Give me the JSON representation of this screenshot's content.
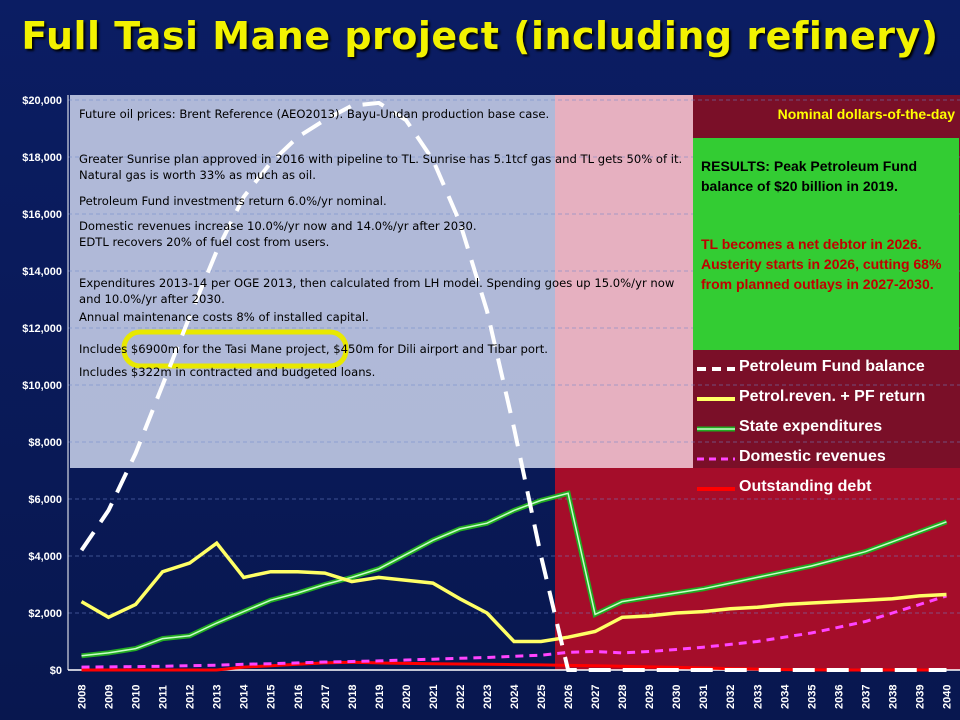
{
  "title": "Full Tasi Mane project (including refinery)",
  "nominal_label": "Nominal dollars-of-the-day",
  "results_text": "RESULTS: Peak Petroleum Fund balance of $20 billion in 2019.",
  "debtor_text": "TL becomes a net debtor in 2026.  Austerity starts in 2026, cutting 68% from planned outlays in 2027-2030.",
  "annotations": [
    "Future oil prices: Brent Reference (AEO2013).   Bayu-Undan production base case.",
    "Greater Sunrise plan approved in 2016 with pipeline to TL. Sunrise has 5.1tcf gas and TL gets 50% of it.",
    "Natural gas is worth 33% as much as oil.",
    "Petroleum Fund investments return 6.0%/yr nominal.",
    "Domestic revenues increase 10.0%/yr now and 14.0%/yr after 2030.",
    "EDTL recovers 20% of fuel cost from users.",
    "Expenditures 2013-14 per OGE 2013, then calculated from LH model. Spending goes up 15.0%/yr now",
    "and 10.0%/yr after 2030.",
    "Annual maintenance costs 8% of installed capital.",
    "Includes $6900m for the Tasi Mane project, $450m for Dili airport and Tibar port.",
    "Includes $322m in contracted and budgeted loans."
  ],
  "colors": {
    "pf": "#ffffff",
    "rev": "#ffff66",
    "exp": "#22aa22",
    "dom": "#ff44ff",
    "debt": "#ff0000",
    "highlight": "#e8e800"
  },
  "chart_data": {
    "type": "line",
    "x": [
      2008,
      2009,
      2010,
      2011,
      2012,
      2013,
      2014,
      2015,
      2016,
      2017,
      2018,
      2019,
      2020,
      2021,
      2022,
      2023,
      2024,
      2025,
      2026,
      2027,
      2028,
      2029,
      2030,
      2031,
      2032,
      2033,
      2034,
      2035,
      2036,
      2037,
      2038,
      2039,
      2040
    ],
    "yticks": [
      "$0",
      "$2,000",
      "$4,000",
      "$6,000",
      "$8,000",
      "$10,000",
      "$12,000",
      "$14,000",
      "$16,000",
      "$18,000",
      "$20,000"
    ],
    "ylim": [
      0,
      20000
    ],
    "series": [
      {
        "name": "Petroleum Fund balance",
        "key": "pf",
        "style": "dashed",
        "values": [
          4200,
          5600,
          7600,
          10000,
          12400,
          14700,
          16600,
          17800,
          18700,
          19300,
          19800,
          19900,
          19300,
          17900,
          15700,
          12600,
          8500,
          4000,
          0,
          0,
          0,
          0,
          0,
          0,
          0,
          0,
          0,
          0,
          0,
          0,
          0,
          0,
          0
        ]
      },
      {
        "name": "Petrol.reven. + PF return",
        "key": "rev",
        "style": "solid",
        "values": [
          2400,
          1850,
          2300,
          3450,
          3750,
          4450,
          3250,
          3450,
          3450,
          3400,
          3100,
          3250,
          3150,
          3050,
          2500,
          2000,
          1000,
          1000,
          1150,
          1350,
          1850,
          1900,
          2000,
          2050,
          2150,
          2200,
          2300,
          2350,
          2400,
          2450,
          2500,
          2600,
          2650
        ]
      },
      {
        "name": "State expenditures",
        "key": "exp",
        "style": "outline",
        "values": [
          500,
          600,
          750,
          1100,
          1200,
          1650,
          2050,
          2450,
          2700,
          3000,
          3250,
          3550,
          4050,
          4550,
          4950,
          5150,
          5600,
          5950,
          6200,
          1950,
          2400,
          2550,
          2700,
          2850,
          3050,
          3250,
          3450,
          3650,
          3900,
          4150,
          4500,
          4850,
          5200
        ]
      },
      {
        "name": "Domestic revenues",
        "key": "dom",
        "style": "dashed",
        "values": [
          100,
          110,
          120,
          130,
          150,
          170,
          200,
          220,
          250,
          280,
          300,
          320,
          350,
          380,
          410,
          440,
          480,
          520,
          620,
          650,
          600,
          650,
          720,
          800,
          900,
          1000,
          1150,
          1300,
          1500,
          1700,
          2000,
          2300,
          2600
        ]
      },
      {
        "name": "Outstanding debt",
        "key": "debt",
        "style": "solid",
        "values": [
          0,
          0,
          0,
          0,
          0,
          0,
          100,
          150,
          200,
          250,
          270,
          250,
          230,
          220,
          210,
          200,
          190,
          180,
          160,
          150,
          130,
          110,
          90,
          70,
          50,
          30,
          15,
          5,
          0,
          0,
          0,
          0,
          0
        ]
      }
    ]
  }
}
